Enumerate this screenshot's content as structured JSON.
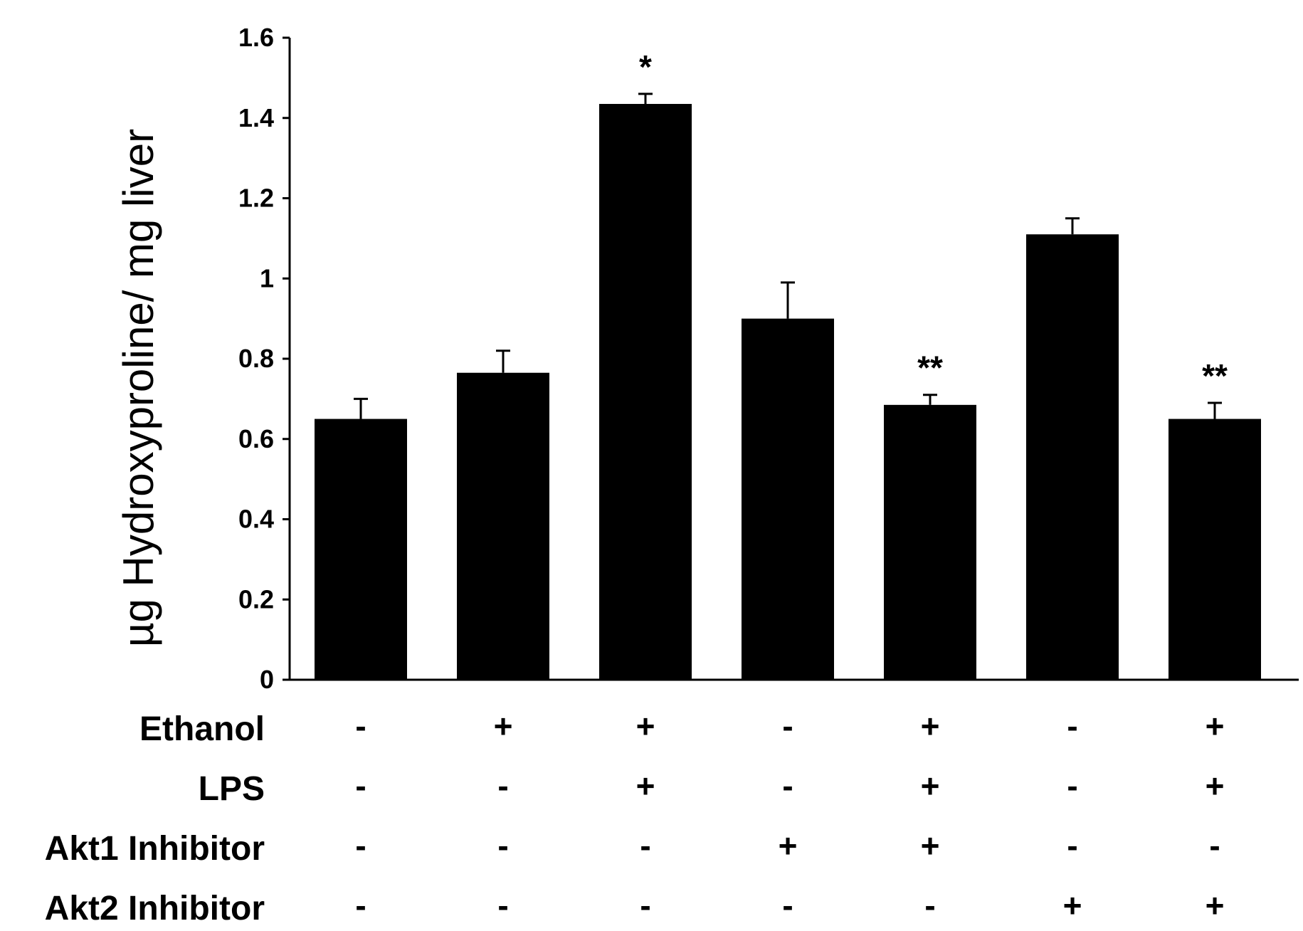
{
  "chart_data": {
    "type": "bar",
    "ylabel": "µg Hydroxyproline/ mg liver",
    "xlabel": "",
    "ylim": [
      0,
      1.6
    ],
    "yticks": [
      0,
      0.2,
      0.4,
      0.6,
      0.8,
      1,
      1.2,
      1.4,
      1.6
    ],
    "ytick_labels": [
      "0",
      "0.2",
      "0.4",
      "0.6",
      "0.8",
      "1",
      "1.2",
      "1.4",
      "1.6"
    ],
    "grid": false,
    "bar_color": "#000000",
    "values": [
      0.65,
      0.765,
      1.435,
      0.9,
      0.685,
      1.11,
      0.65
    ],
    "errors": [
      0.05,
      0.055,
      0.025,
      0.09,
      0.025,
      0.04,
      0.04
    ],
    "annotations": [
      "",
      "",
      "*",
      "",
      "**",
      "",
      "**"
    ],
    "treatment_rows": [
      {
        "label": "Ethanol",
        "signs": [
          "-",
          "+",
          "+",
          "-",
          "+",
          "-",
          "+"
        ]
      },
      {
        "label": "LPS",
        "signs": [
          "-",
          "-",
          "+",
          "-",
          "+",
          "-",
          "+"
        ]
      },
      {
        "label": "Akt1 Inhibitor",
        "signs": [
          "-",
          "-",
          "-",
          "+",
          "+",
          "-",
          "-"
        ]
      },
      {
        "label": "Akt2 Inhibitor",
        "signs": [
          "-",
          "-",
          "-",
          "-",
          "-",
          "+",
          "+"
        ]
      }
    ]
  }
}
